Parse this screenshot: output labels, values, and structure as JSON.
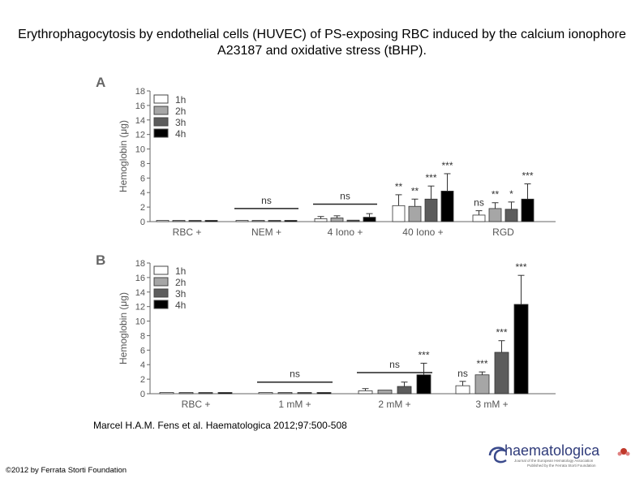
{
  "title": "Erythrophagocytosis by endothelial cells (HUVEC) of PS-exposing RBC induced by the calcium ionophore A23187 and oxidative stress (tBHP).",
  "citation": "Marcel H.A.M. Fens et al. Haematologica 2012;97:500-508",
  "copyright": "©2012 by Ferrata Storti Foundation",
  "logo": {
    "name": "haematologica",
    "subtitle_1": "Journal of the European Hematology Association",
    "subtitle_2": "Published by the Ferrata Storti Foundation"
  },
  "colors": {
    "1h": "#ffffff",
    "2h": "#a6a6a6",
    "3h": "#5c5c5c",
    "4h": "#000000"
  },
  "chart_data": [
    {
      "type": "bar",
      "panel": "A",
      "ylabel": "Hemoglobin (μg)",
      "ylim": [
        0,
        18
      ],
      "yticks": [
        0,
        2,
        4,
        6,
        8,
        10,
        12,
        14,
        16,
        18
      ],
      "legend": [
        "1h",
        "2h",
        "3h",
        "4h"
      ],
      "categories": [
        "RBC +",
        "NEM +",
        "4 Iono +",
        "40 Iono +",
        "RGD"
      ],
      "series": [
        {
          "name": "1h",
          "values": [
            0.1,
            0.1,
            0.4,
            2.2,
            0.9
          ],
          "errors": [
            0.05,
            0.05,
            0.3,
            1.5,
            0.6
          ]
        },
        {
          "name": "2h",
          "values": [
            0.1,
            0.1,
            0.5,
            2.1,
            1.8
          ],
          "errors": [
            0.05,
            0.05,
            0.3,
            1.0,
            0.8
          ]
        },
        {
          "name": "3h",
          "values": [
            0.1,
            0.1,
            0.2,
            3.1,
            1.7
          ],
          "errors": [
            0.05,
            0.05,
            0.2,
            1.8,
            1.0
          ]
        },
        {
          "name": "4h",
          "values": [
            0.1,
            0.1,
            0.6,
            4.2,
            3.1
          ],
          "errors": [
            0.05,
            0.05,
            0.5,
            2.4,
            2.1
          ]
        }
      ],
      "bar_labels": [
        {
          "category": 3,
          "series": 0,
          "text": "**"
        },
        {
          "category": 3,
          "series": 1,
          "text": "**"
        },
        {
          "category": 3,
          "series": 2,
          "text": "***"
        },
        {
          "category": 3,
          "series": 3,
          "text": "***"
        },
        {
          "category": 4,
          "series": 0,
          "text": "ns"
        },
        {
          "category": 4,
          "series": 1,
          "text": "**"
        },
        {
          "category": 4,
          "series": 2,
          "text": "*"
        },
        {
          "category": 4,
          "series": 3,
          "text": "***"
        }
      ],
      "group_labels": [
        {
          "category": 1,
          "text": "ns",
          "level": 1.8
        },
        {
          "category": 2,
          "text": "ns",
          "level": 2.4
        }
      ]
    },
    {
      "type": "bar",
      "panel": "B",
      "ylabel": "Hemoglobin (μg)",
      "ylim": [
        0,
        18
      ],
      "yticks": [
        0,
        2,
        4,
        6,
        8,
        10,
        12,
        14,
        16,
        18
      ],
      "legend": [
        "1h",
        "2h",
        "3h",
        "4h"
      ],
      "categories": [
        "RBC +",
        "1 mM +",
        "2 mM +",
        "3 mM +"
      ],
      "series": [
        {
          "name": "1h",
          "values": [
            0.1,
            0.1,
            0.4,
            1.1
          ],
          "errors": [
            0.05,
            0.05,
            0.3,
            0.6
          ]
        },
        {
          "name": "2h",
          "values": [
            0.1,
            0.1,
            0.5,
            2.6
          ],
          "errors": [
            0.05,
            0.05,
            0.2,
            0.4
          ]
        },
        {
          "name": "3h",
          "values": [
            0.1,
            0.1,
            1.0,
            5.7
          ],
          "errors": [
            0.05,
            0.05,
            0.6,
            1.6
          ]
        },
        {
          "name": "4h",
          "values": [
            0.1,
            0.1,
            2.6,
            12.3
          ],
          "errors": [
            0.05,
            0.05,
            1.6,
            4.0
          ]
        }
      ],
      "bar_labels": [
        {
          "category": 2,
          "series": 3,
          "text": "***"
        },
        {
          "category": 3,
          "series": 0,
          "text": "ns"
        },
        {
          "category": 3,
          "series": 1,
          "text": "***"
        },
        {
          "category": 3,
          "series": 2,
          "text": "***"
        },
        {
          "category": 3,
          "series": 3,
          "text": "***"
        }
      ],
      "group_labels": [
        {
          "category": 1,
          "text": "ns",
          "level": 1.6
        },
        {
          "category": 2,
          "text": "ns",
          "level": 2.9
        }
      ]
    }
  ]
}
